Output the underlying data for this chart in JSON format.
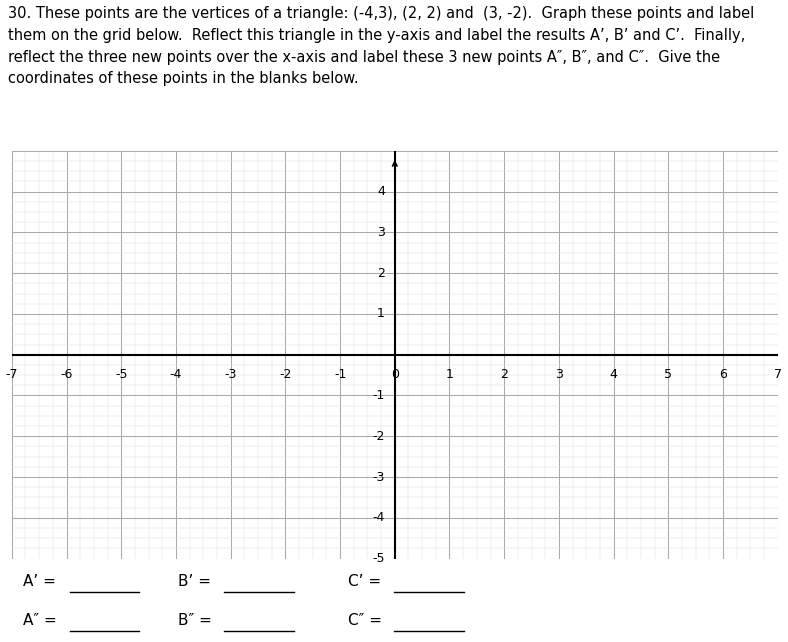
{
  "title_text": "30. These points are the vertices of a triangle: (-4,3), (2, 2) and  (3, -2).  Graph these points and label\nthem on the grid below.  Reflect this triangle in the y-axis and label the results A’, B’ and C’.  Finally,\nreflect the three new points over the x-axis and label these 3 new points A″, B″, and C″.  Give the\ncoordinates of these points in the blanks below.",
  "xmin": -7,
  "xmax": 7,
  "ymin": -5,
  "ymax": 5,
  "grid_major_color": "#aaaaaa",
  "grid_minor_color": "#dddddd",
  "axis_color": "#000000",
  "background_color": "#ffffff",
  "xlabel_ticks": [
    -7,
    -6,
    -5,
    -4,
    -3,
    -2,
    -1,
    0,
    1,
    2,
    3,
    4,
    5,
    6,
    7
  ],
  "ylabel_ticks": [
    -5,
    -4,
    -3,
    -2,
    -1,
    1,
    2,
    3,
    4
  ],
  "label_row1_items": [
    "A’ =",
    "B’ =",
    "C’ ="
  ],
  "label_row2_items": [
    "A″ =",
    "B″ =",
    "C″ ="
  ],
  "title_fontsize": 10.5,
  "tick_fontsize": 9,
  "label_fontsize": 11
}
